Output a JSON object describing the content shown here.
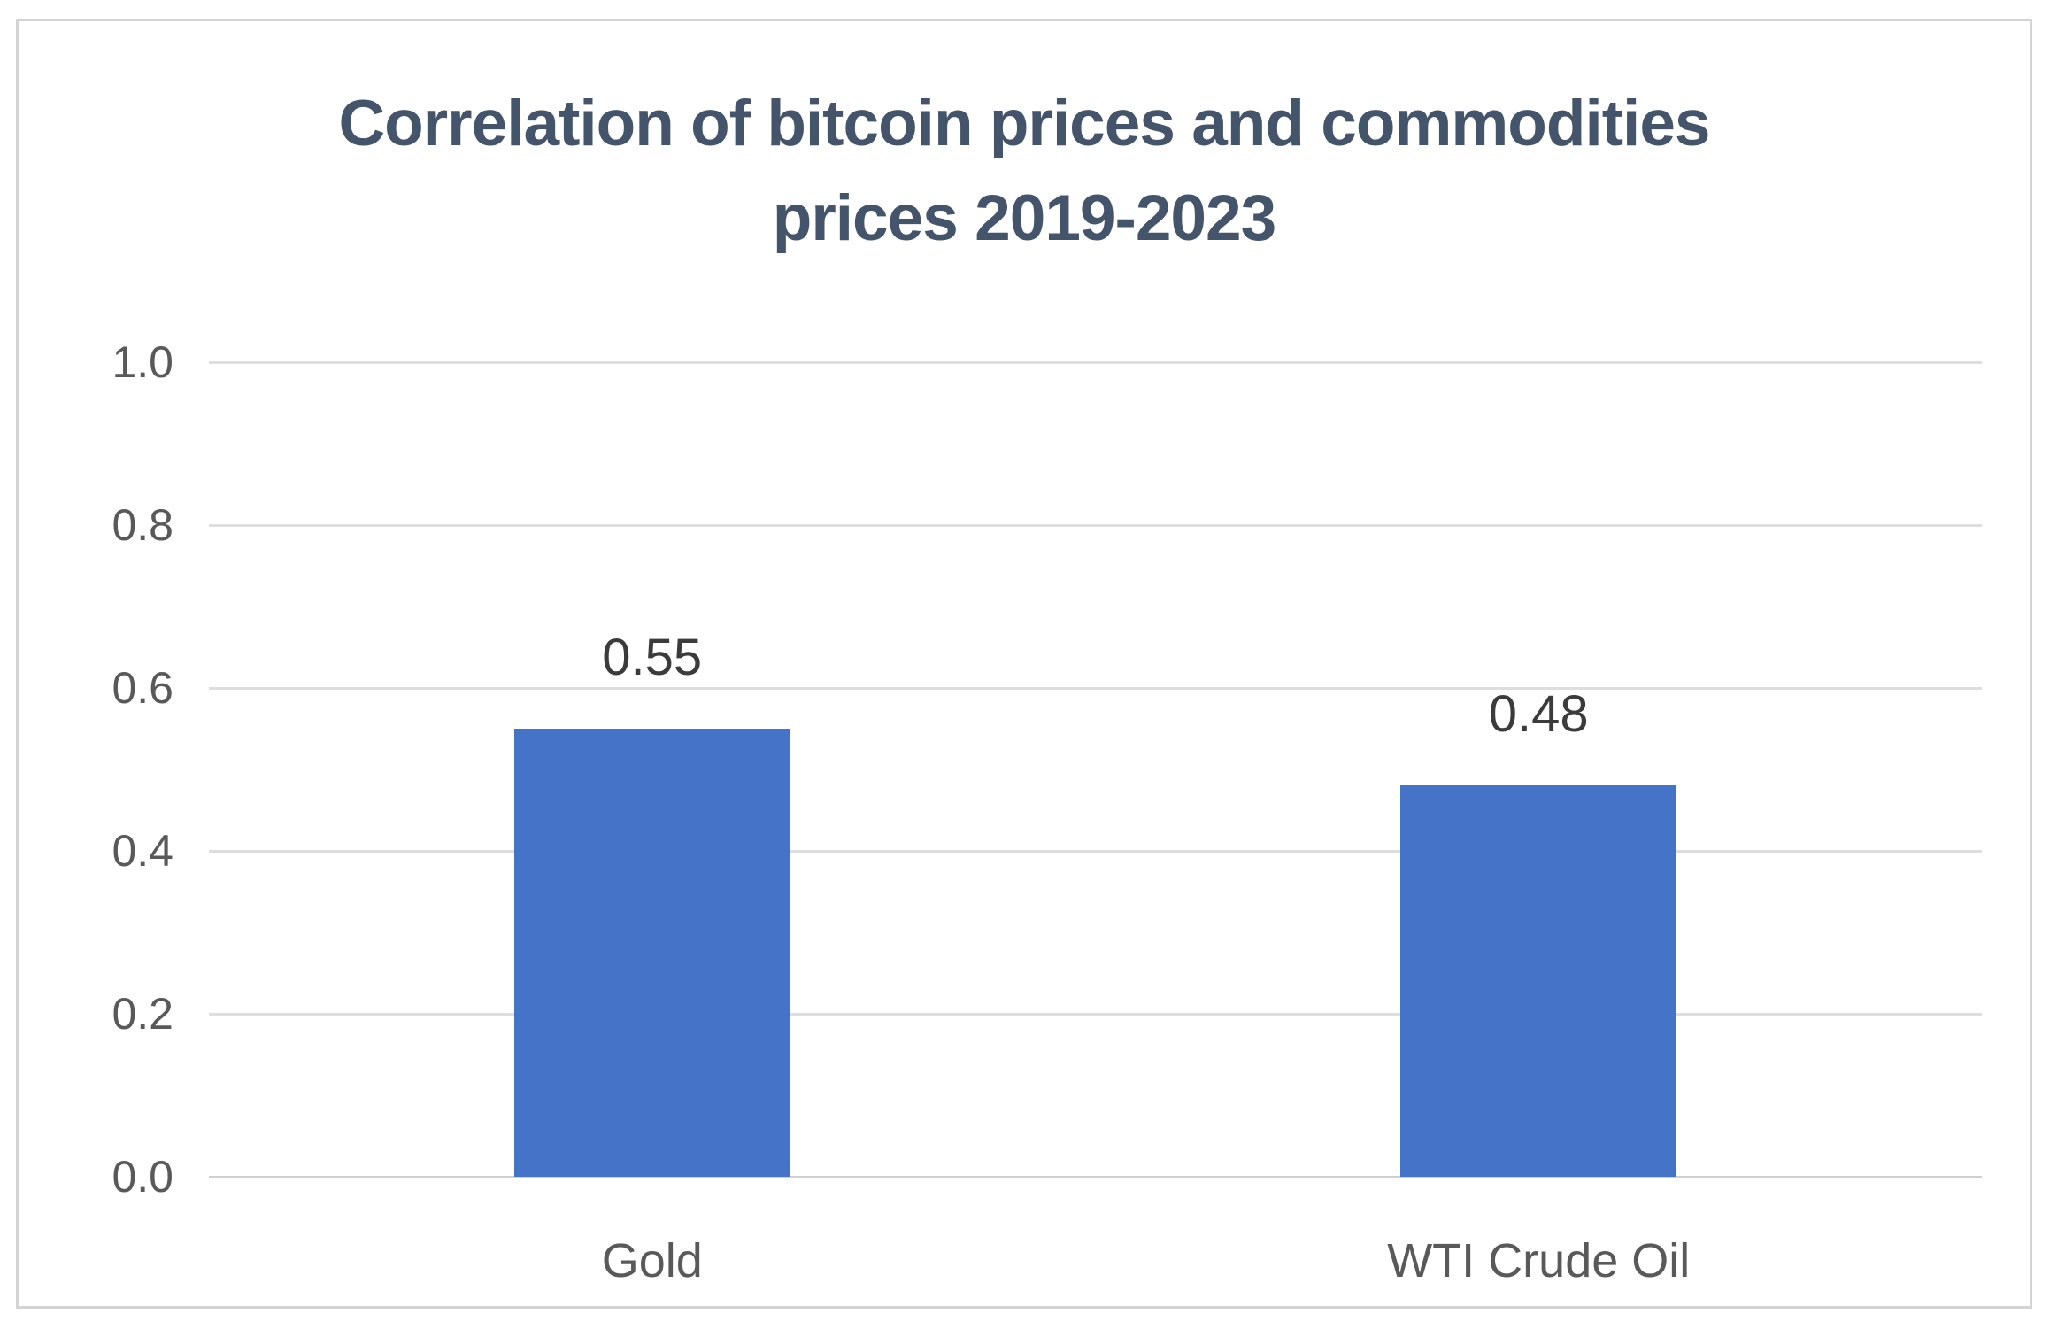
{
  "chart_data": {
    "type": "bar",
    "title": "Correlation of bitcoin prices and commodities prices 2019-2023",
    "title_lines": [
      "Correlation of bitcoin prices and commodities",
      "prices 2019-2023"
    ],
    "categories": [
      "Gold",
      "WTI Crude Oil"
    ],
    "values": [
      0.55,
      0.48
    ],
    "data_labels": [
      "0.55",
      "0.48"
    ],
    "xlabel": "",
    "ylabel": "",
    "ylim": [
      0.0,
      1.0
    ],
    "y_ticks": [
      {
        "value": 0.0,
        "label": "0.0"
      },
      {
        "value": 0.2,
        "label": "0.2"
      },
      {
        "value": 0.4,
        "label": "0.4"
      },
      {
        "value": 0.6,
        "label": "0.6"
      },
      {
        "value": 0.8,
        "label": "0.8"
      },
      {
        "value": 1.0,
        "label": "1.0"
      }
    ],
    "grid": true,
    "legend_position": "none",
    "colors": {
      "bar_fill": "#4573c7",
      "gridline": "#dedede",
      "axis_baseline": "#d0d0d0",
      "title_text": "#44546a",
      "tick_text": "#595959",
      "data_label_text": "#3b3b3b",
      "category_text": "#595959",
      "frame_border": "#d4d4d4",
      "background": "#ffffff"
    }
  }
}
